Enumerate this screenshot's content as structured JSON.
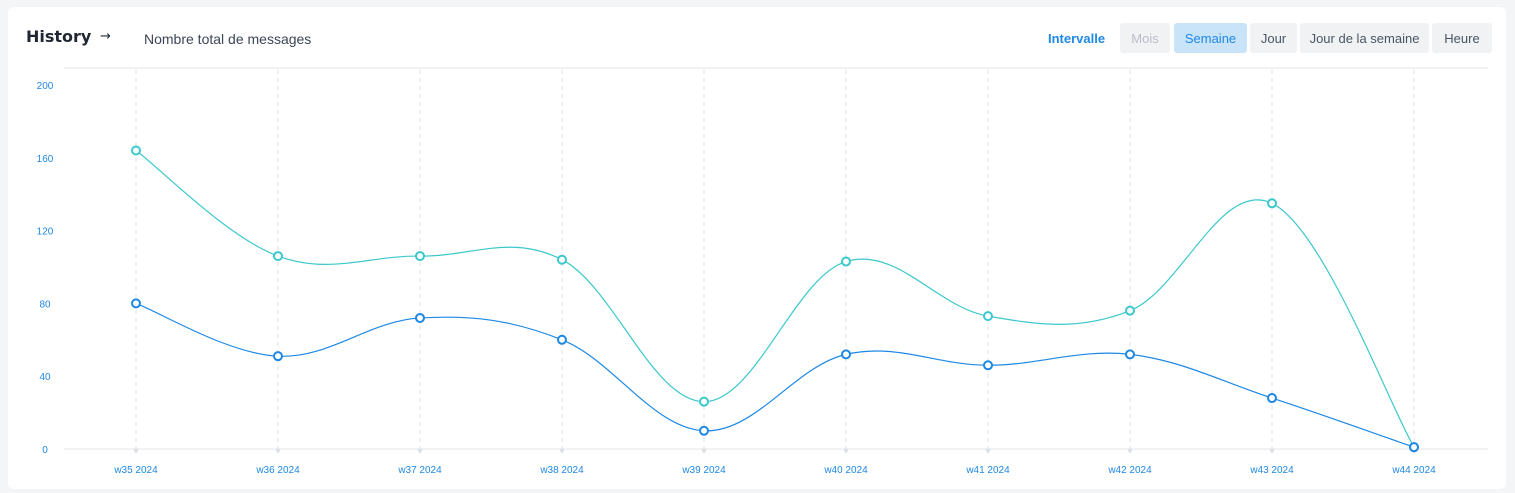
{
  "header": {
    "title": "History",
    "arrow_icon": "arrow-right-icon",
    "subtitle": "Nombre total de messages"
  },
  "interval": {
    "label": "Intervalle",
    "options": [
      "Mois",
      "Semaine",
      "Jour",
      "Jour de la semaine",
      "Heure"
    ],
    "selected": "Semaine",
    "disabled": [
      "Mois"
    ]
  },
  "colors": {
    "accent": "#1e88e5",
    "series_teal": "#3cc8cc",
    "series_blue": "#1e88e5",
    "active_bg": "#c9e4f8"
  },
  "chart_data": {
    "type": "line",
    "categories": [
      "w35 2024",
      "w36 2024",
      "w37 2024",
      "w38 2024",
      "w39 2024",
      "w40 2024",
      "w41 2024",
      "w42 2024",
      "w43 2024",
      "w44 2024"
    ],
    "series": [
      {
        "values": [
          164,
          106,
          106,
          104,
          26,
          103,
          73,
          76,
          135,
          1
        ],
        "color": "#3cc8cc"
      },
      {
        "values": [
          80,
          51,
          72,
          60,
          10,
          52,
          46,
          52,
          28,
          1
        ],
        "color": "#1e88e5"
      }
    ],
    "y_ticks": [
      0,
      40,
      80,
      120,
      160,
      200
    ],
    "ylim": [
      0,
      200
    ],
    "grid": "vertical dashed",
    "smooth": true
  }
}
